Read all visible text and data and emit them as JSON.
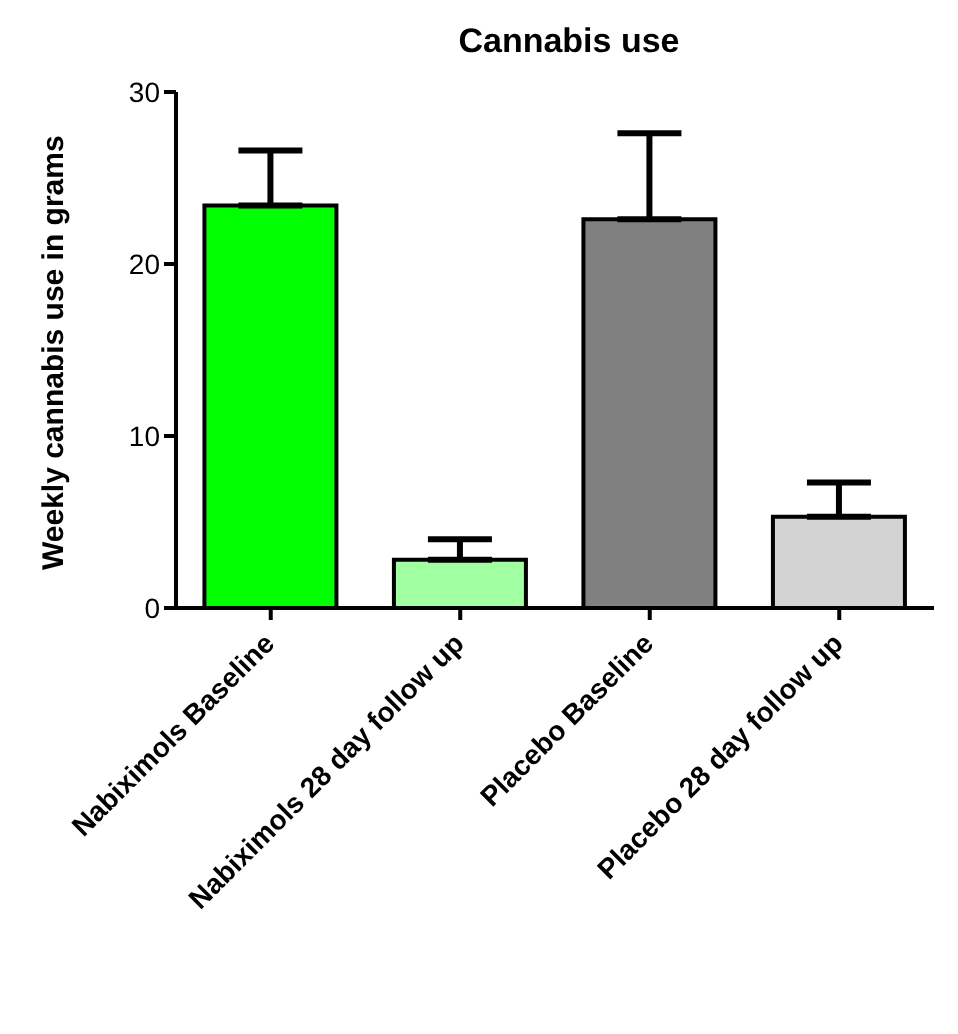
{
  "chart_data": {
    "type": "bar",
    "title": "Cannabis use",
    "ylabel": "Weekly cannabis use in grams",
    "categories": [
      "Nabiximols Baseline",
      "Nabiximols 28 day follow up",
      "Placebo Baseline",
      "Placebo 28 day follow up"
    ],
    "values": [
      23.4,
      2.8,
      22.6,
      5.3
    ],
    "colors": [
      "#00ff00",
      "#a0ffa0",
      "#808080",
      "#d3d3d3"
    ],
    "errors": [
      [
        23.4,
        26.6
      ],
      [
        2.8,
        4.0
      ],
      [
        22.6,
        27.6
      ],
      [
        5.3,
        7.3
      ]
    ],
    "ylim": [
      0,
      30
    ],
    "yticks": [
      0,
      10,
      20,
      30
    ]
  }
}
